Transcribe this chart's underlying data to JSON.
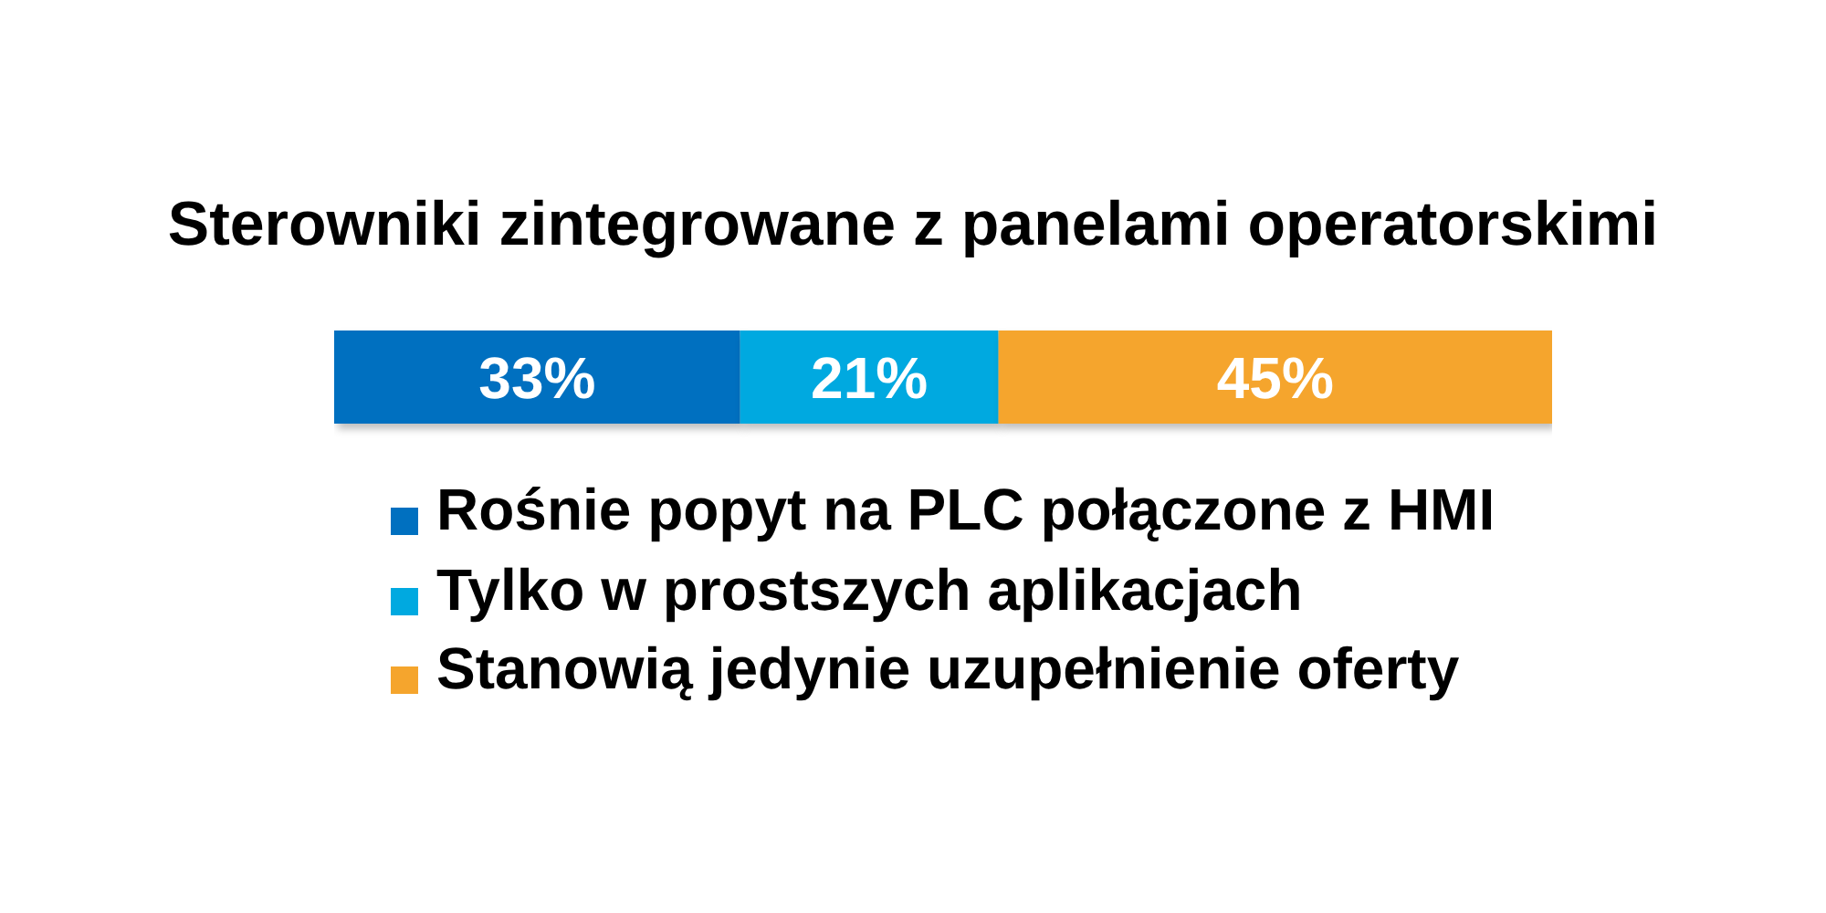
{
  "chart_data": {
    "type": "bar",
    "orientation": "horizontal",
    "stacked": true,
    "title": "Sterowniki zintegrowane z panelami operatorskimi",
    "categories": [
      null
    ],
    "series": [
      {
        "name": "Rośnie popyt na PLC połączone z HMI",
        "color": "#0070c0",
        "values": [
          33
        ],
        "value_labels": [
          "33%"
        ]
      },
      {
        "name": "Tylko w prostszych aplikacjach",
        "color": "#00a9e0",
        "values": [
          21
        ],
        "value_labels": [
          "21%"
        ]
      },
      {
        "name": "Stanowią jedynie uzupełnienie oferty",
        "color": "#f5a52d",
        "values": [
          45
        ],
        "value_labels": [
          "45%"
        ]
      }
    ],
    "legend": "bottom",
    "tick_labels": false
  }
}
